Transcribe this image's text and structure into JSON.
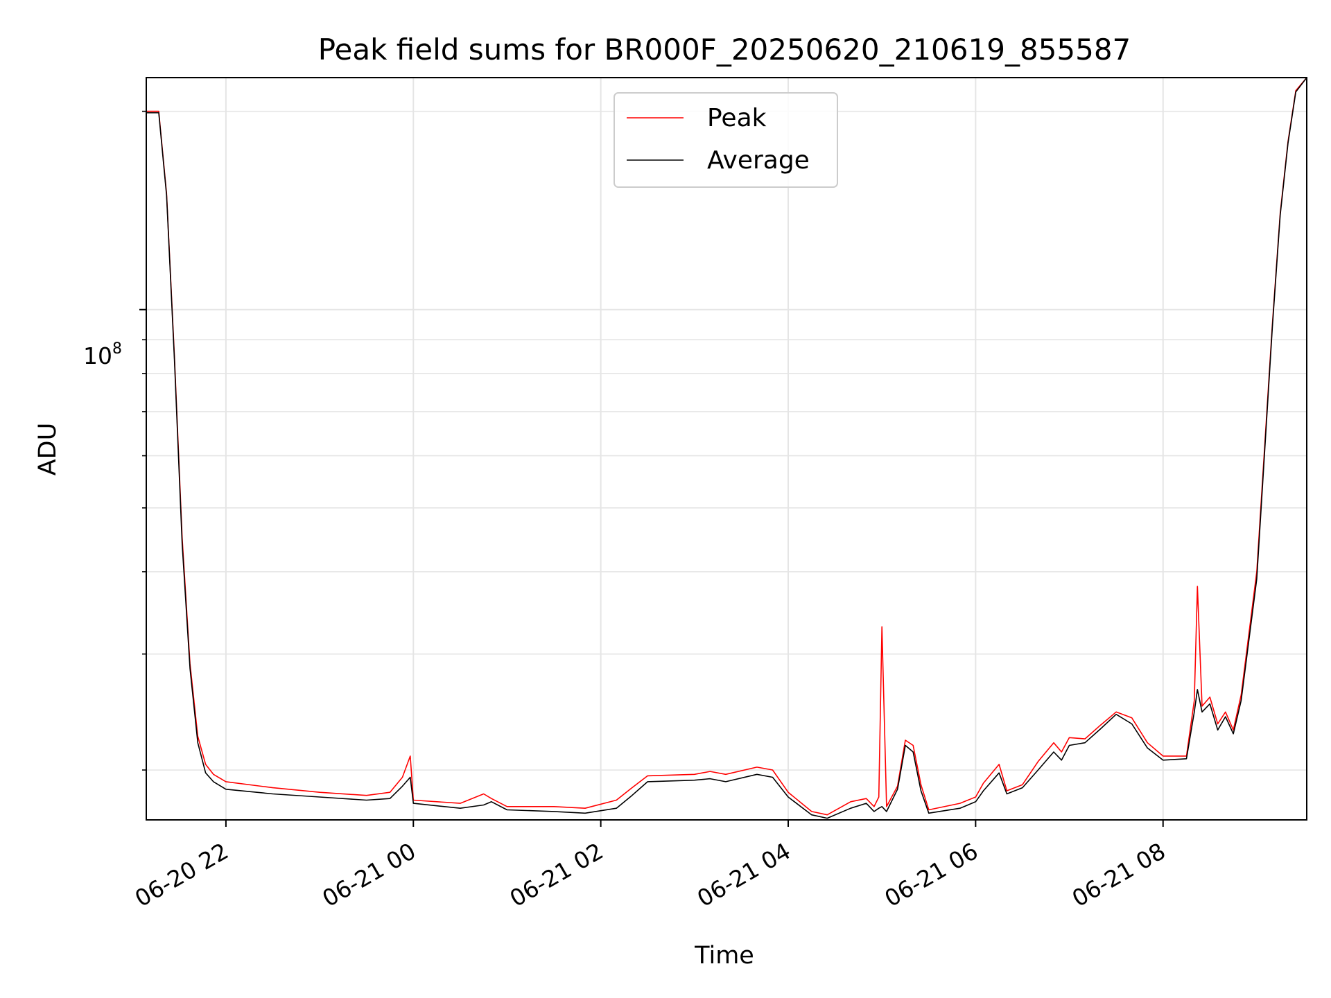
{
  "chart_data": {
    "type": "line",
    "title": "Peak field sums for BR000F_20250620_210619_855587",
    "xlabel": "Time",
    "ylabel": "ADU",
    "x_tick_labels": [
      "06-20 22",
      "06-21 00",
      "06-21 02",
      "06-21 04",
      "06-21 06",
      "06-21 08"
    ],
    "x_tick_dates": [
      "2025-06-20T22:00",
      "2025-06-21T00:00",
      "2025-06-21T02:00",
      "2025-06-21T04:00",
      "2025-06-21T06:00",
      "2025-06-21T08:00"
    ],
    "xlim": [
      "2025-06-20T21:09",
      "2025-06-21T09:32"
    ],
    "y_scale": "log",
    "ylim": [
      16800000,
      225000000
    ],
    "y_major_tick_value": 100000000,
    "y_major_tick_label_base": "10",
    "y_major_tick_label_exp": "8",
    "grid": true,
    "legend_position": "upper center",
    "series": [
      {
        "name": "Peak",
        "color": "#ff0000",
        "x": [
          "2025-06-20T21:09",
          "2025-06-20T21:17",
          "2025-06-20T21:22",
          "2025-06-20T21:27",
          "2025-06-20T21:32",
          "2025-06-20T21:37",
          "2025-06-20T21:42",
          "2025-06-20T21:47",
          "2025-06-20T21:52",
          "2025-06-20T22:00",
          "2025-06-20T22:30",
          "2025-06-20T23:00",
          "2025-06-20T23:30",
          "2025-06-20T23:45",
          "2025-06-20T23:53",
          "2025-06-20T23:58",
          "2025-06-21T00:00",
          "2025-06-21T00:30",
          "2025-06-21T00:45",
          "2025-06-21T00:50",
          "2025-06-21T01:00",
          "2025-06-21T01:30",
          "2025-06-21T01:50",
          "2025-06-21T02:10",
          "2025-06-21T02:20",
          "2025-06-21T02:30",
          "2025-06-21T03:00",
          "2025-06-21T03:10",
          "2025-06-21T03:20",
          "2025-06-21T03:40",
          "2025-06-21T03:50",
          "2025-06-21T04:00",
          "2025-06-21T04:15",
          "2025-06-21T04:25",
          "2025-06-21T04:40",
          "2025-06-21T04:50",
          "2025-06-21T04:55",
          "2025-06-21T04:58",
          "2025-06-21T05:00",
          "2025-06-21T05:03",
          "2025-06-21T05:10",
          "2025-06-21T05:15",
          "2025-06-21T05:20",
          "2025-06-21T05:25",
          "2025-06-21T05:30",
          "2025-06-21T05:50",
          "2025-06-21T06:00",
          "2025-06-21T06:05",
          "2025-06-21T06:15",
          "2025-06-21T06:20",
          "2025-06-21T06:30",
          "2025-06-21T06:40",
          "2025-06-21T06:50",
          "2025-06-21T06:55",
          "2025-06-21T07:00",
          "2025-06-21T07:10",
          "2025-06-21T07:20",
          "2025-06-21T07:30",
          "2025-06-21T07:40",
          "2025-06-21T07:50",
          "2025-06-21T08:00",
          "2025-06-21T08:15",
          "2025-06-21T08:20",
          "2025-06-21T08:22",
          "2025-06-21T08:25",
          "2025-06-21T08:30",
          "2025-06-21T08:35",
          "2025-06-21T08:40",
          "2025-06-21T08:45",
          "2025-06-21T08:50",
          "2025-06-21T09:00",
          "2025-06-21T09:10",
          "2025-06-21T09:15",
          "2025-06-21T09:20",
          "2025-06-21T09:25",
          "2025-06-21T09:32"
        ],
        "values": [
          200000000,
          200000000,
          150000000,
          85000000,
          45000000,
          29000000,
          22500000,
          20400000,
          19700000,
          19200000,
          18800000,
          18500000,
          18300000,
          18500000,
          19500000,
          21000000,
          18000000,
          17800000,
          18400000,
          18100000,
          17600000,
          17600000,
          17500000,
          18000000,
          18800000,
          19600000,
          19700000,
          19900000,
          19700000,
          20200000,
          20000000,
          18500000,
          17300000,
          17100000,
          17900000,
          18100000,
          17600000,
          18200000,
          33000000,
          17600000,
          18900000,
          22200000,
          21800000,
          19000000,
          17400000,
          17800000,
          18200000,
          19100000,
          20400000,
          18600000,
          19000000,
          20600000,
          22000000,
          21300000,
          22400000,
          22300000,
          23400000,
          24500000,
          24000000,
          22000000,
          21000000,
          21000000,
          25500000,
          38000000,
          25000000,
          25800000,
          23500000,
          24500000,
          23000000,
          26000000,
          40000000,
          95000000,
          140000000,
          180000000,
          215000000,
          225000000
        ]
      },
      {
        "name": "Average",
        "color": "#000000",
        "x": [
          "2025-06-20T21:09",
          "2025-06-20T21:17",
          "2025-06-20T21:22",
          "2025-06-20T21:27",
          "2025-06-20T21:32",
          "2025-06-20T21:37",
          "2025-06-20T21:42",
          "2025-06-20T21:47",
          "2025-06-20T21:52",
          "2025-06-20T22:00",
          "2025-06-20T22:30",
          "2025-06-20T23:00",
          "2025-06-20T23:30",
          "2025-06-20T23:45",
          "2025-06-20T23:53",
          "2025-06-20T23:58",
          "2025-06-21T00:00",
          "2025-06-21T00:30",
          "2025-06-21T00:45",
          "2025-06-21T00:50",
          "2025-06-21T01:00",
          "2025-06-21T01:30",
          "2025-06-21T01:50",
          "2025-06-21T02:10",
          "2025-06-21T02:20",
          "2025-06-21T02:30",
          "2025-06-21T03:00",
          "2025-06-21T03:10",
          "2025-06-21T03:20",
          "2025-06-21T03:40",
          "2025-06-21T03:50",
          "2025-06-21T04:00",
          "2025-06-21T04:15",
          "2025-06-21T04:25",
          "2025-06-21T04:40",
          "2025-06-21T04:50",
          "2025-06-21T04:55",
          "2025-06-21T04:58",
          "2025-06-21T05:00",
          "2025-06-21T05:03",
          "2025-06-21T05:10",
          "2025-06-21T05:15",
          "2025-06-21T05:20",
          "2025-06-21T05:25",
          "2025-06-21T05:30",
          "2025-06-21T05:50",
          "2025-06-21T06:00",
          "2025-06-21T06:05",
          "2025-06-21T06:15",
          "2025-06-21T06:20",
          "2025-06-21T06:30",
          "2025-06-21T06:40",
          "2025-06-21T06:50",
          "2025-06-21T06:55",
          "2025-06-21T07:00",
          "2025-06-21T07:10",
          "2025-06-21T07:20",
          "2025-06-21T07:30",
          "2025-06-21T07:40",
          "2025-06-21T07:50",
          "2025-06-21T08:00",
          "2025-06-21T08:15",
          "2025-06-21T08:20",
          "2025-06-21T08:22",
          "2025-06-21T08:25",
          "2025-06-21T08:30",
          "2025-06-21T08:35",
          "2025-06-21T08:40",
          "2025-06-21T08:45",
          "2025-06-21T08:50",
          "2025-06-21T09:00",
          "2025-06-21T09:10",
          "2025-06-21T09:15",
          "2025-06-21T09:20",
          "2025-06-21T09:25",
          "2025-06-21T09:32"
        ],
        "values": [
          199000000,
          199000000,
          149000000,
          84000000,
          44000000,
          28500000,
          22000000,
          19800000,
          19200000,
          18700000,
          18400000,
          18200000,
          18000000,
          18100000,
          18900000,
          19500000,
          17800000,
          17500000,
          17700000,
          17900000,
          17400000,
          17300000,
          17200000,
          17500000,
          18300000,
          19200000,
          19300000,
          19400000,
          19200000,
          19700000,
          19500000,
          18200000,
          17100000,
          16900000,
          17500000,
          17800000,
          17300000,
          17500000,
          17600000,
          17300000,
          18700000,
          21800000,
          21300000,
          18600000,
          17200000,
          17500000,
          17900000,
          18600000,
          19800000,
          18400000,
          18800000,
          20000000,
          21300000,
          20700000,
          21800000,
          22000000,
          23100000,
          24300000,
          23500000,
          21600000,
          20700000,
          20800000,
          24500000,
          26500000,
          24500000,
          25200000,
          23000000,
          24100000,
          22700000,
          25500000,
          39000000,
          94000000,
          139000000,
          179000000,
          214000000,
          225000000
        ]
      }
    ]
  }
}
